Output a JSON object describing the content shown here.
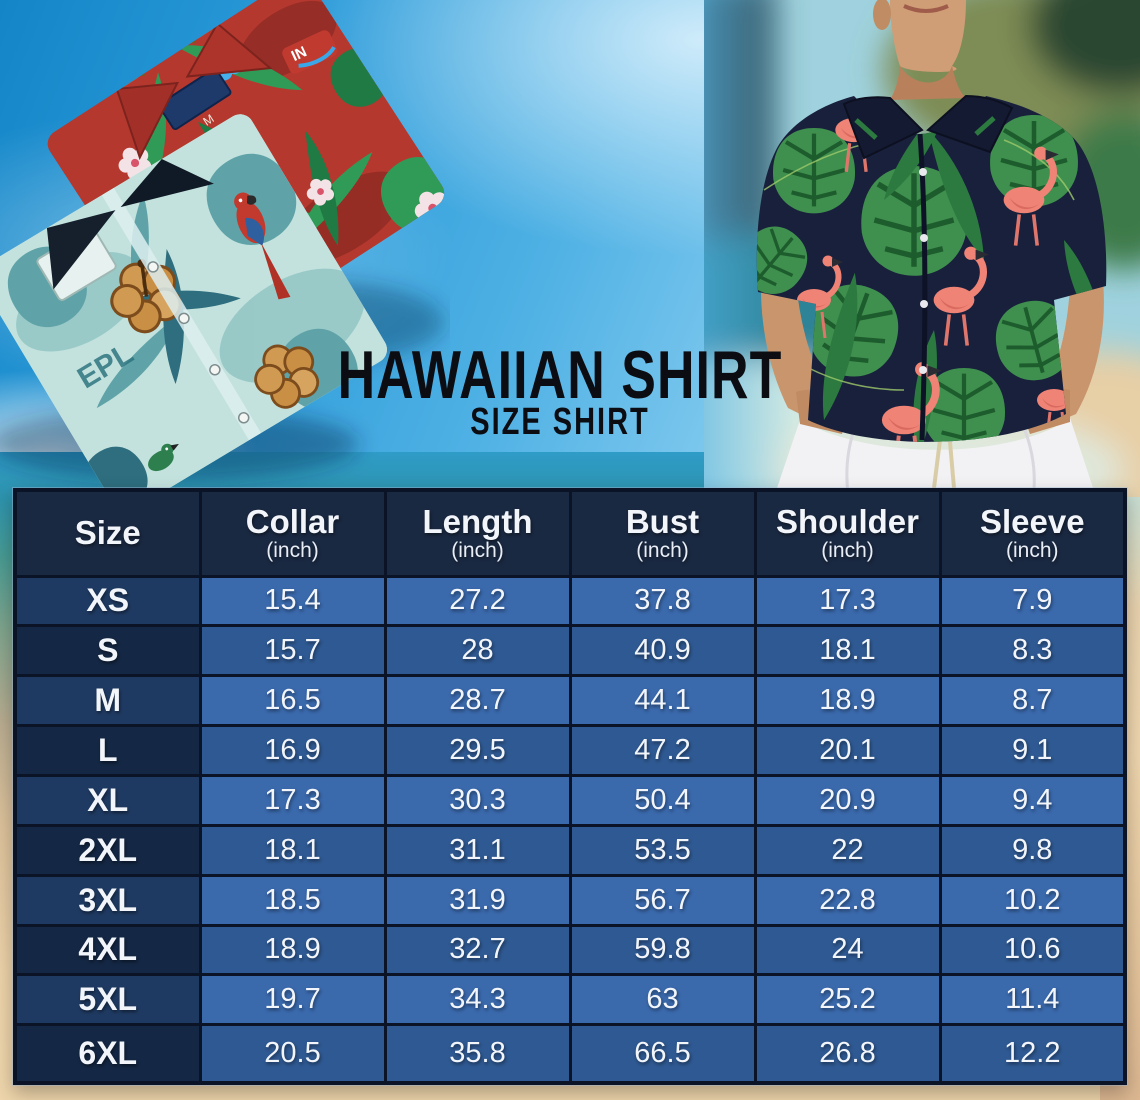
{
  "title": {
    "main": "HAWAIIAN SHIRT",
    "sub": "SIZE SHIRT"
  },
  "chart_data": {
    "type": "table",
    "title": "HAWAIIAN SHIRT",
    "subtitle": "SIZE SHIRT",
    "columns": [
      {
        "label": "Size",
        "unit": ""
      },
      {
        "label": "Collar",
        "unit": "(inch)"
      },
      {
        "label": "Length",
        "unit": "(inch)"
      },
      {
        "label": "Bust",
        "unit": "(inch)"
      },
      {
        "label": "Shoulder",
        "unit": "(inch)"
      },
      {
        "label": "Sleeve",
        "unit": "(inch)"
      }
    ],
    "rows": [
      [
        "XS",
        "15.4",
        "27.2",
        "37.8",
        "17.3",
        "7.9"
      ],
      [
        "S",
        "15.7",
        "28",
        "40.9",
        "18.1",
        "8.3"
      ],
      [
        "M",
        "16.5",
        "28.7",
        "44.1",
        "18.9",
        "8.7"
      ],
      [
        "L",
        "16.9",
        "29.5",
        "47.2",
        "20.1",
        "9.1"
      ],
      [
        "XL",
        "17.3",
        "30.3",
        "50.4",
        "20.9",
        "9.4"
      ],
      [
        "2XL",
        "18.1",
        "31.1",
        "53.5",
        "22",
        "9.8"
      ],
      [
        "3XL",
        "18.5",
        "31.9",
        "56.7",
        "22.8",
        "10.2"
      ],
      [
        "4XL",
        "18.9",
        "32.7",
        "59.8",
        "24",
        "10.6"
      ],
      [
        "5XL",
        "19.7",
        "34.3",
        "63",
        "25.2",
        "11.4"
      ],
      [
        "6XL",
        "20.5",
        "35.8",
        "66.5",
        "26.8",
        "12.2"
      ]
    ]
  },
  "images": {
    "left_photo": "folded-hawaiian-shirts",
    "right_photo": "man-wearing-flamingo-hawaiian-shirt",
    "teal_shirt_print_text": "EPL",
    "red_shirt_logo_text": "IN",
    "red_shirt_size_tag": "M"
  },
  "colors": {
    "sky": "#2d9cda",
    "sand": "#ecd2a9",
    "table_border": "#0a1426",
    "header_bg": "#1a2942",
    "size_col_odd": "#1f3a62",
    "size_col_even": "#142744",
    "cell_odd": "#3a69ac",
    "cell_even": "#2f5992",
    "red_shirt": "#b5382f",
    "teal_shirt": "#bfe0dc",
    "navy_shirt": "#18203c",
    "flamingo": "#ef8376",
    "leaf_green": "#3f8f4e"
  }
}
